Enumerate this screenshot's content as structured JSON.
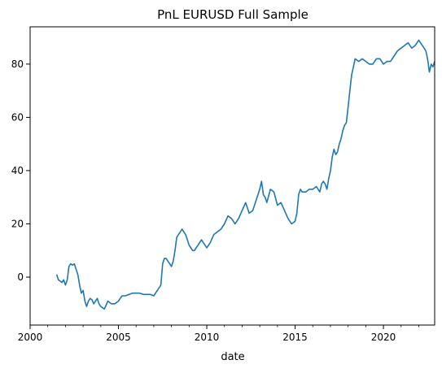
{
  "chart_data": {
    "type": "line",
    "title": "PnL EURUSD Full Sample",
    "xlabel": "date",
    "ylabel": "",
    "xlim": [
      2000.0,
      2022.9
    ],
    "ylim": [
      -18,
      94
    ],
    "xticks": [
      2000,
      2005,
      2010,
      2015,
      2020
    ],
    "yticks": [
      0,
      20,
      40,
      60,
      80
    ],
    "grid": false,
    "legend": "none",
    "colors": {
      "line": "#1f77b4"
    },
    "series": [
      {
        "x": [
          2001.5,
          2001.6,
          2001.7,
          2001.8,
          2001.9,
          2002.0,
          2002.1,
          2002.2,
          2002.3,
          2002.4,
          2002.5,
          2002.6,
          2002.7,
          2002.8,
          2002.9,
          2003.0,
          2003.1,
          2003.2,
          2003.3,
          2003.4,
          2003.5,
          2003.6,
          2003.7,
          2003.8,
          2003.9,
          2004.0,
          2004.2,
          2004.4,
          2004.6,
          2004.8,
          2005.0,
          2005.1,
          2005.2,
          2005.4,
          2005.6,
          2005.8,
          2006.0,
          2006.2,
          2006.4,
          2006.6,
          2006.8,
          2007.0,
          2007.2,
          2007.4,
          2007.5,
          2007.6,
          2007.7,
          2007.8,
          2007.9,
          2008.0,
          2008.1,
          2008.2,
          2008.3,
          2008.4,
          2008.5,
          2008.6,
          2008.7,
          2008.8,
          2008.9,
          2009.0,
          2009.1,
          2009.2,
          2009.3,
          2009.4,
          2009.5,
          2009.6,
          2009.7,
          2009.8,
          2009.9,
          2010.0,
          2010.2,
          2010.4,
          2010.6,
          2010.8,
          2011.0,
          2011.2,
          2011.4,
          2011.5,
          2011.6,
          2011.8,
          2012.0,
          2012.2,
          2012.4,
          2012.6,
          2012.8,
          2013.0,
          2013.1,
          2013.2,
          2013.3,
          2013.4,
          2013.6,
          2013.8,
          2014.0,
          2014.2,
          2014.4,
          2014.6,
          2014.8,
          2015.0,
          2015.1,
          2015.2,
          2015.3,
          2015.4,
          2015.6,
          2015.8,
          2016.0,
          2016.2,
          2016.4,
          2016.5,
          2016.6,
          2016.7,
          2016.8,
          2016.9,
          2017.0,
          2017.1,
          2017.2,
          2017.3,
          2017.4,
          2017.5,
          2017.6,
          2017.7,
          2017.8,
          2017.9,
          2018.0,
          2018.1,
          2018.2,
          2018.3,
          2018.4,
          2018.6,
          2018.8,
          2019.0,
          2019.2,
          2019.4,
          2019.6,
          2019.8,
          2020.0,
          2020.2,
          2020.4,
          2020.6,
          2020.8,
          2021.0,
          2021.2,
          2021.4,
          2021.6,
          2021.8,
          2022.0,
          2022.1,
          2022.2,
          2022.3,
          2022.4,
          2022.5,
          2022.6,
          2022.7,
          2022.8,
          2022.9
        ],
        "values": [
          1,
          -1,
          -1.5,
          -2,
          -1,
          -3,
          -1,
          4,
          5,
          4.5,
          5,
          3,
          1,
          -3,
          -6,
          -5,
          -9,
          -11,
          -9,
          -8,
          -8.5,
          -10,
          -9,
          -8,
          -10,
          -11,
          -12,
          -9,
          -10,
          -10,
          -9,
          -8,
          -7,
          -7,
          -6.5,
          -6,
          -6,
          -6,
          -6.5,
          -6.5,
          -6.5,
          -7,
          -5,
          -3,
          5,
          7,
          7,
          6,
          5,
          4,
          6,
          10,
          15,
          16,
          17,
          18,
          17,
          16,
          14,
          12,
          11,
          10,
          10,
          11,
          12,
          13,
          14,
          13,
          12,
          11,
          13,
          16,
          17,
          18,
          20,
          23,
          22,
          21,
          20,
          22,
          25,
          28,
          24,
          25,
          29,
          33,
          36,
          31,
          30,
          28,
          33,
          32,
          27,
          28,
          25,
          22,
          20,
          21,
          24,
          31,
          33,
          32,
          32,
          33,
          33,
          34,
          32,
          35,
          36,
          35,
          33,
          37,
          40,
          45,
          48,
          46,
          47,
          50,
          52,
          55,
          57,
          58,
          64,
          70,
          76,
          79,
          82,
          81,
          82,
          81,
          80,
          80,
          82,
          82,
          80,
          81,
          81,
          83,
          85,
          86,
          87,
          88,
          86,
          87,
          89,
          88,
          87,
          86,
          85,
          82,
          77,
          80,
          79,
          81
        ]
      }
    ]
  }
}
